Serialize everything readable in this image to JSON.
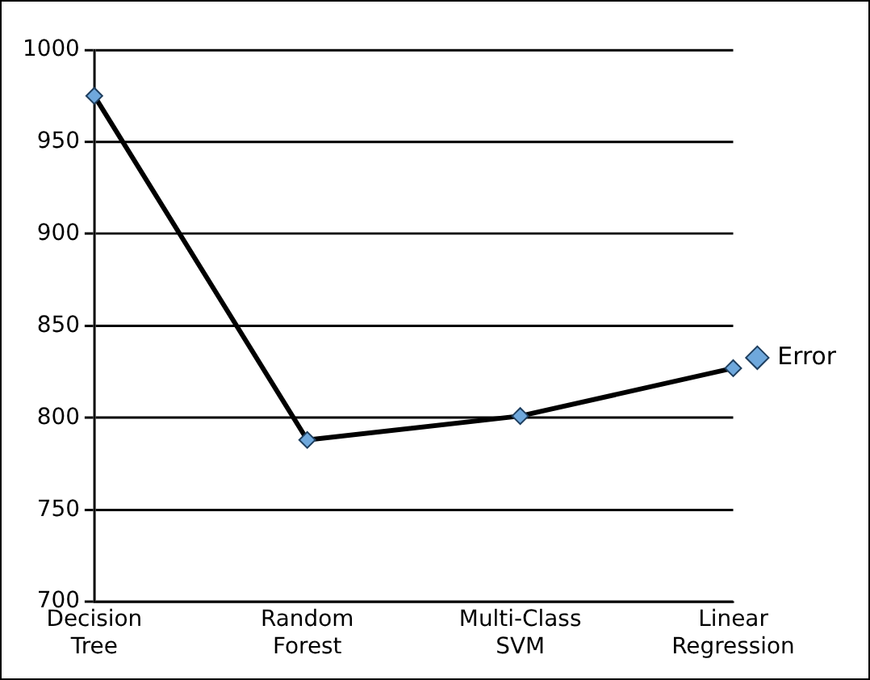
{
  "chart_data": {
    "type": "line",
    "categories": [
      "Decision Tree",
      "Random Forest",
      "Multi-Class SVM",
      "Linear Regression"
    ],
    "series": [
      {
        "name": "Error",
        "color": "#000000",
        "values": [
          975,
          788,
          801,
          827
        ]
      }
    ],
    "ylim": [
      700,
      1000
    ],
    "yticks": [
      700,
      750,
      800,
      850,
      900,
      950,
      1000
    ],
    "grid": "y",
    "legend": "right",
    "marker": "diamond",
    "line_style": "solid"
  }
}
